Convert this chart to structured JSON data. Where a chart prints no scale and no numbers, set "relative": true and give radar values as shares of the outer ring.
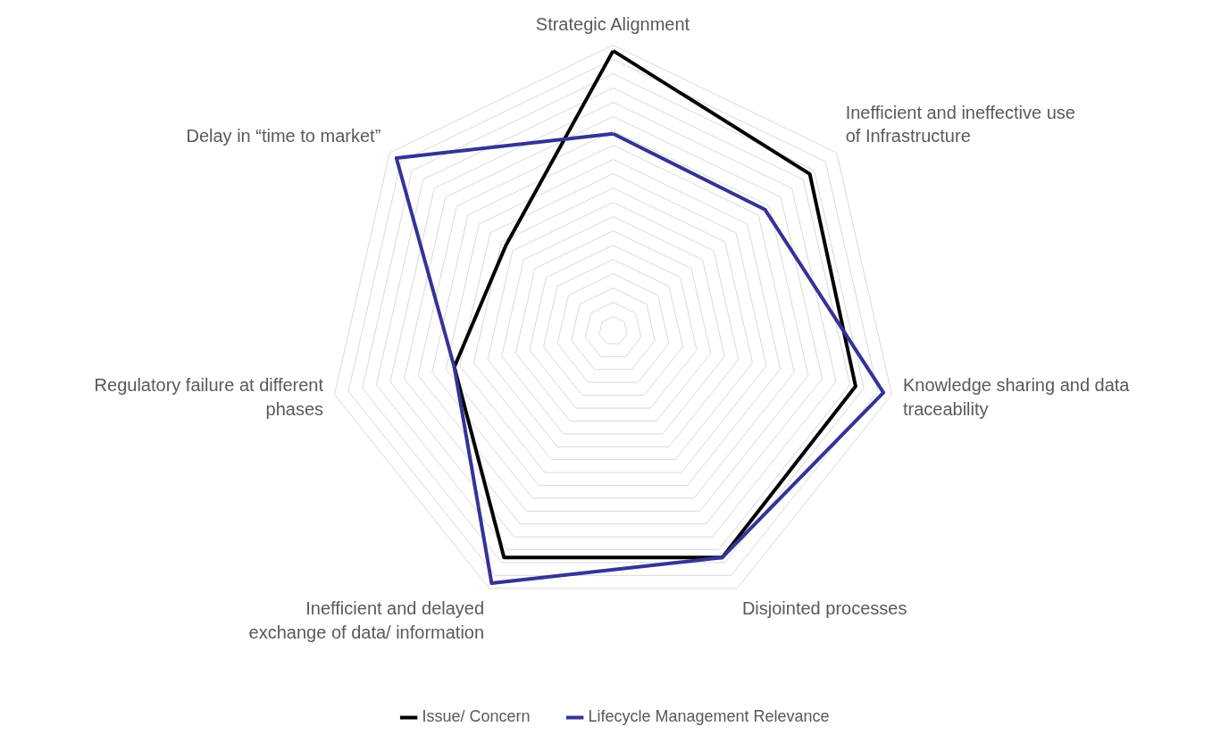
{
  "chart_data": {
    "type": "radar",
    "relative": true,
    "grid": true,
    "legend": "bottom",
    "line_style": "solid",
    "marker": "none",
    "categories": [
      "Strategic Alignment",
      "Inefficient and ineffective use\nof Infrastructure",
      "Knowledge sharing and data\ntraceability",
      "Disjointed processes",
      "Inefficient and delayed\nexchange of data/ information",
      "Regulatory failure at different\nphases",
      "Delay in “time to market”"
    ],
    "series": [
      {
        "name": "Issue/ Concern",
        "color": "#000000",
        "values": [
          0.98,
          0.88,
          0.87,
          0.88,
          0.88,
          0.57,
          0.48
        ]
      },
      {
        "name": "Lifecycle Management Relevance",
        "color": "#333399",
        "values": [
          0.69,
          0.68,
          0.97,
          0.88,
          0.98,
          0.57,
          0.97
        ]
      }
    ]
  }
}
